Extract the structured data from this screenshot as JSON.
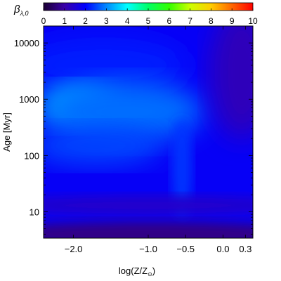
{
  "chart_data": {
    "type": "heatmap",
    "title": "",
    "colorbar": {
      "label_symbol": "β",
      "label_subscript": "λ,0",
      "ticks": [
        "0",
        "1",
        "2",
        "3",
        "4",
        "5",
        "6",
        "7",
        "8",
        "9",
        "10"
      ],
      "range": [
        0,
        10
      ],
      "colors": [
        "#1a0033",
        "#3a00a8",
        "#0000ff",
        "#0088ff",
        "#00ffff",
        "#00ff66",
        "#33ff00",
        "#ccff00",
        "#ffcc00",
        "#ff6600",
        "#ff0000"
      ]
    },
    "xaxis": {
      "label": "log(Z/Z",
      "label_sub": "⊙",
      "label_end": ")",
      "range": [
        -2.4,
        0.4
      ],
      "ticks": [
        {
          "value": -2.0,
          "label": "−2.0"
        },
        {
          "value": -1.0,
          "label": "−1.0"
        },
        {
          "value": -0.5,
          "label": "−0.5"
        },
        {
          "value": 0.0,
          "label": "0.0"
        },
        {
          "value": 0.3,
          "label": "0.3"
        }
      ]
    },
    "yaxis": {
      "label": "Age [Myr]",
      "scale": "log",
      "range": [
        3.4,
        20000
      ],
      "ticks": [
        {
          "value": 10,
          "label": "10"
        },
        {
          "value": 100,
          "label": "100"
        },
        {
          "value": 1000,
          "label": "1000"
        },
        {
          "value": 10000,
          "label": "10000"
        }
      ]
    },
    "field_regions": [
      {
        "name": "background",
        "value": 1.9
      },
      {
        "name": "high-age-intermediate-Z",
        "x": -1.6,
        "age": 4000,
        "value": 2.2
      },
      {
        "name": "peak",
        "x": -1.95,
        "age": 750,
        "value": 3.4
      },
      {
        "name": "mid-plateau",
        "x": -1.3,
        "age": 600,
        "value": 2.8
      },
      {
        "name": "low-Z-mid",
        "x": -1.7,
        "age": 150,
        "value": 2.5
      },
      {
        "name": "ridge",
        "x": -0.55,
        "age": 60,
        "value": 2.4
      },
      {
        "name": "high-Z-old-dark",
        "x": 0.25,
        "age": 3000,
        "value": 1.2
      },
      {
        "name": "band-low",
        "x": -1.0,
        "age": 13,
        "value": 1.4
      },
      {
        "name": "young-dark",
        "x": -1.0,
        "age": 4,
        "value": 0.7
      }
    ]
  }
}
